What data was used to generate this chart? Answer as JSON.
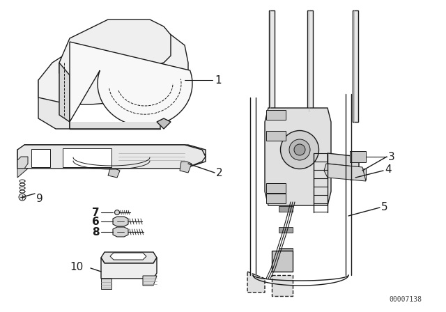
{
  "bg_color": "#ffffff",
  "line_color": "#1a1a1a",
  "label_color": "#000000",
  "part_number_text": "00007138",
  "figsize": [
    6.4,
    4.48
  ],
  "dpi": 100
}
